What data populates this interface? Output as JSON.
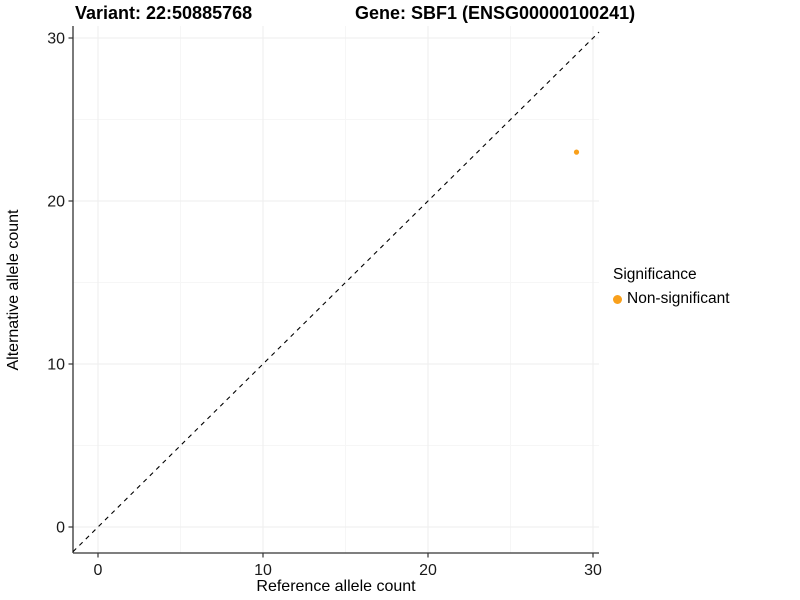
{
  "chart_data": {
    "type": "scatter",
    "title_left": "Variant: 22:50885768",
    "title_right": "Gene: SBF1 (ENSG00000100241)",
    "xlabel": "Reference allele count",
    "ylabel": "Alternative allele count",
    "xlim": [
      0,
      30
    ],
    "ylim": [
      0,
      30
    ],
    "xticks": [
      0,
      10,
      20,
      30
    ],
    "yticks": [
      0,
      10,
      20,
      30
    ],
    "xminor": [
      5,
      15,
      25
    ],
    "yminor": [
      5,
      15,
      25
    ],
    "grid": "major and minor, very light gray, on white background",
    "reference_line": {
      "slope": 1,
      "intercept": 0,
      "style": "dashed",
      "color": "#000000"
    },
    "series": [
      {
        "name": "Non-significant",
        "color": "#F9A01B",
        "points": [
          {
            "x": 29,
            "y": 23
          }
        ]
      }
    ],
    "legend": {
      "title": "Significance",
      "position": "right",
      "items": [
        {
          "label": "Non-significant",
          "color": "#F9A01B",
          "marker": "circle"
        }
      ]
    },
    "colors": {
      "axis_line": "#333333",
      "tick_label": "#1a1a1a",
      "grid_major": "#EDEDED",
      "grid_minor": "#F6F6F6"
    }
  }
}
